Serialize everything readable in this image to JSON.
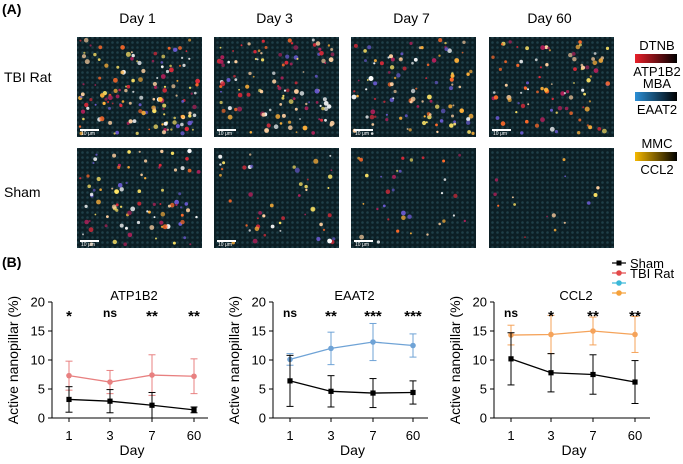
{
  "panel_a": {
    "label": "(A)",
    "columns": [
      "Day 1",
      "Day 3",
      "Day 7",
      "Day 60"
    ],
    "rows": [
      {
        "label": "TBI Rat",
        "densities": [
          0.95,
          0.75,
          0.7,
          0.6
        ]
      },
      {
        "label": "Sham",
        "densities": [
          0.6,
          0.32,
          0.22,
          0.1
        ]
      }
    ],
    "scale_bar": "10 μm",
    "colorbars": [
      {
        "top": "DTNB",
        "bottom": "ATP1B2",
        "color_low": "#000000",
        "color_high": "#e8202a"
      },
      {
        "top": "MBA",
        "bottom": "EAAT2",
        "color_low": "#000000",
        "color_high": "#2b8fd6"
      },
      {
        "top": "MMC",
        "bottom": "CCL2",
        "color_low": "#000000",
        "color_high": "#f5b800"
      }
    ]
  },
  "panel_b": {
    "label": "(B)",
    "legend": [
      {
        "name": "Sham",
        "color": "#000000"
      },
      {
        "name": "TBI Rat",
        "color": "#e34a4a"
      },
      {
        "name": "TBI Rat",
        "color": "#3ab8d8"
      },
      {
        "name": "TBI Rat",
        "color": "#f5a13a"
      }
    ]
  },
  "chart_data": [
    {
      "type": "line",
      "title": "ATP1B2",
      "xlabel": "Day",
      "ylabel": "Active nanopillar (%)",
      "categories": [
        "1",
        "3",
        "7",
        "60"
      ],
      "ylim": [
        0,
        20
      ],
      "yticks": [
        0,
        5,
        10,
        15,
        20
      ],
      "series": [
        {
          "name": "Sham",
          "color": "#000000",
          "values": [
            3.2,
            2.9,
            2.2,
            1.4
          ],
          "err": [
            2.2,
            2.0,
            2.2,
            0.5
          ]
        },
        {
          "name": "TBI Rat",
          "color": "#e88080",
          "values": [
            7.3,
            6.2,
            7.4,
            7.2
          ],
          "err": [
            2.5,
            2.0,
            3.5,
            3.0
          ]
        }
      ],
      "significance": [
        "*",
        "ns",
        "**",
        "**"
      ]
    },
    {
      "type": "line",
      "title": "EAAT2",
      "xlabel": "Day",
      "ylabel": "Active nanopillar (%)",
      "categories": [
        "1",
        "3",
        "7",
        "60"
      ],
      "ylim": [
        0,
        20
      ],
      "yticks": [
        0,
        5,
        10,
        15,
        20
      ],
      "series": [
        {
          "name": "Sham",
          "color": "#000000",
          "values": [
            6.4,
            4.6,
            4.3,
            4.4
          ],
          "err": [
            4.4,
            2.7,
            2.5,
            2.0
          ]
        },
        {
          "name": "TBI Rat",
          "color": "#6fa3d6",
          "values": [
            10.1,
            12.0,
            13.1,
            12.5
          ],
          "err": [
            1.0,
            2.8,
            3.2,
            2.0
          ]
        }
      ],
      "significance": [
        "ns",
        "**",
        "***",
        "***"
      ]
    },
    {
      "type": "line",
      "title": "CCL2",
      "xlabel": "Day",
      "ylabel": "Active nanopillar (%)",
      "categories": [
        "1",
        "3",
        "7",
        "60"
      ],
      "ylim": [
        0,
        20
      ],
      "yticks": [
        0,
        5,
        10,
        15,
        20
      ],
      "series": [
        {
          "name": "Sham",
          "color": "#000000",
          "values": [
            10.2,
            7.8,
            7.5,
            6.2
          ],
          "err": [
            4.5,
            3.3,
            3.4,
            3.7
          ]
        },
        {
          "name": "TBI Rat",
          "color": "#f5a35a",
          "values": [
            14.3,
            14.4,
            15.0,
            14.4
          ],
          "err": [
            1.7,
            3.3,
            2.4,
            3.1
          ]
        }
      ],
      "significance": [
        "ns",
        "*",
        "**",
        "**"
      ]
    }
  ]
}
